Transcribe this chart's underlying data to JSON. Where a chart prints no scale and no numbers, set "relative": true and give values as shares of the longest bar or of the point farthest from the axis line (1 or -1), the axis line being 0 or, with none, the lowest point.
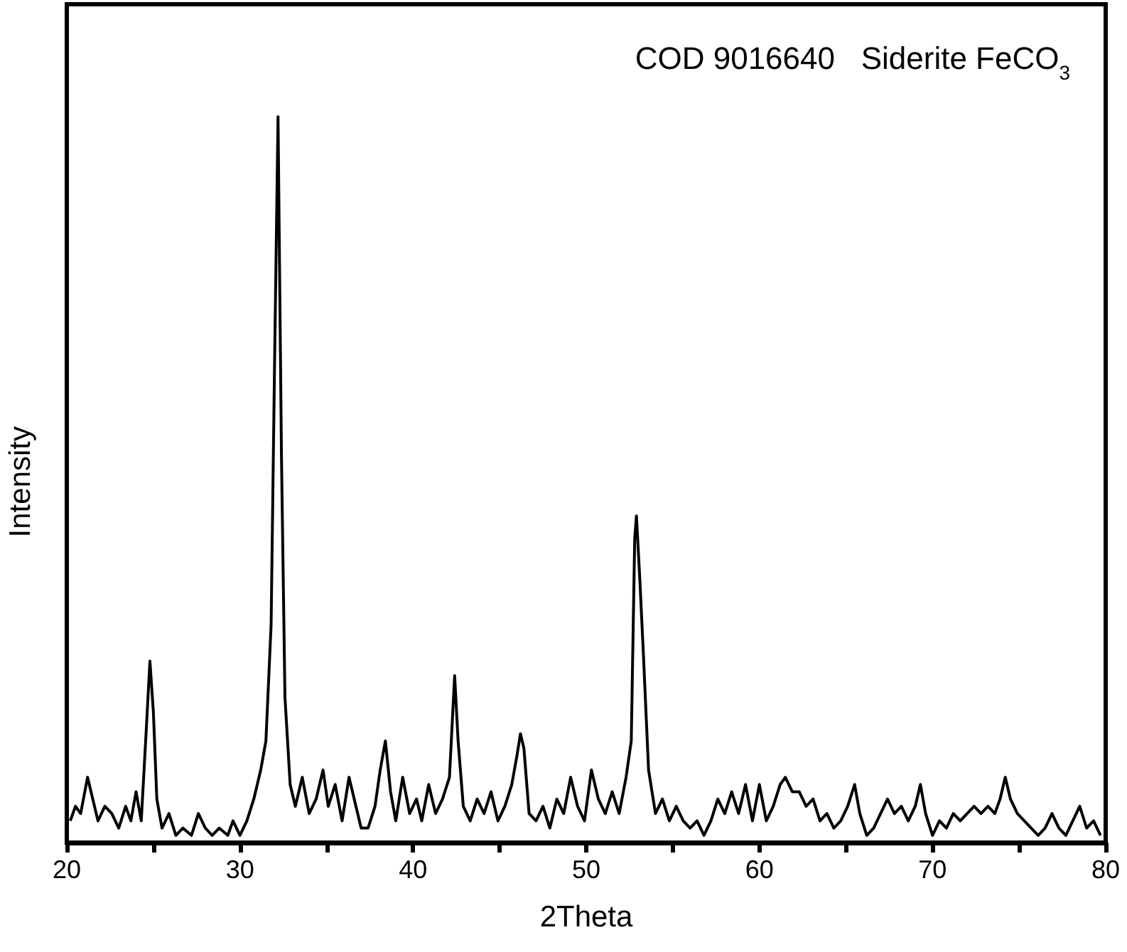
{
  "chart_data": {
    "type": "line",
    "xlabel": "2Theta",
    "ylabel": "Intensity",
    "relative": true,
    "annotations": [
      "COD 9016640   Siderite FeCO$_{3}$"
    ],
    "xlim": [
      20,
      80
    ],
    "xticks": [
      20,
      {
        "value": 25,
        "label": null
      },
      30,
      {
        "value": 35,
        "label": null
      },
      40,
      {
        "value": 45,
        "label": null
      },
      50,
      {
        "value": 55,
        "label": null
      },
      60,
      {
        "value": 65,
        "label": null
      },
      70,
      {
        "value": 75,
        "label": null
      },
      80
    ],
    "series": [
      {
        "color": "#000000",
        "x": [
          20.2,
          20.5,
          20.8,
          21.2,
          21.5,
          21.8,
          22.2,
          22.6,
          23.0,
          23.4,
          23.7,
          24.0,
          24.3,
          24.6,
          24.8,
          25.0,
          25.2,
          25.5,
          25.9,
          26.3,
          26.7,
          27.2,
          27.6,
          28.0,
          28.4,
          28.8,
          29.3,
          29.6,
          30.0,
          30.4,
          30.8,
          31.2,
          31.5,
          31.8,
          32.0,
          32.2,
          32.4,
          32.6,
          32.9,
          33.2,
          33.6,
          34.0,
          34.4,
          34.8,
          35.1,
          35.5,
          35.9,
          36.3,
          36.7,
          37.0,
          37.4,
          37.8,
          38.1,
          38.4,
          38.7,
          39.0,
          39.4,
          39.8,
          40.2,
          40.5,
          40.9,
          41.3,
          41.7,
          42.1,
          42.4,
          42.6,
          42.9,
          43.3,
          43.7,
          44.1,
          44.5,
          44.9,
          45.3,
          45.7,
          46.0,
          46.2,
          46.4,
          46.7,
          47.1,
          47.5,
          47.9,
          48.3,
          48.7,
          49.1,
          49.5,
          49.9,
          50.3,
          50.7,
          51.1,
          51.5,
          51.9,
          52.3,
          52.6,
          52.8,
          52.9,
          53.1,
          53.3,
          53.6,
          54.0,
          54.4,
          54.8,
          55.2,
          55.6,
          56.0,
          56.4,
          56.8,
          57.2,
          57.6,
          58.0,
          58.4,
          58.8,
          59.2,
          59.6,
          60.0,
          60.4,
          60.8,
          61.2,
          61.5,
          61.9,
          62.3,
          62.7,
          63.1,
          63.5,
          63.9,
          64.3,
          64.7,
          65.1,
          65.5,
          65.8,
          66.2,
          66.6,
          67.0,
          67.4,
          67.8,
          68.2,
          68.6,
          69.0,
          69.3,
          69.6,
          70.0,
          70.4,
          70.8,
          71.2,
          71.6,
          72.0,
          72.4,
          72.8,
          73.2,
          73.6,
          73.9,
          74.2,
          74.5,
          74.9,
          75.3,
          75.7,
          76.1,
          76.5,
          76.9,
          77.3,
          77.7,
          78.1,
          78.5,
          78.9,
          79.3,
          79.7
        ],
        "values": [
          0.03,
          0.05,
          0.04,
          0.09,
          0.06,
          0.03,
          0.05,
          0.04,
          0.02,
          0.05,
          0.03,
          0.07,
          0.03,
          0.16,
          0.25,
          0.18,
          0.06,
          0.02,
          0.04,
          0.01,
          0.02,
          0.01,
          0.04,
          0.02,
          0.01,
          0.02,
          0.01,
          0.03,
          0.01,
          0.03,
          0.06,
          0.1,
          0.14,
          0.3,
          0.66,
          1.0,
          0.53,
          0.2,
          0.08,
          0.05,
          0.09,
          0.04,
          0.06,
          0.1,
          0.05,
          0.08,
          0.03,
          0.09,
          0.05,
          0.02,
          0.02,
          0.05,
          0.1,
          0.14,
          0.07,
          0.03,
          0.09,
          0.04,
          0.06,
          0.03,
          0.08,
          0.04,
          0.06,
          0.09,
          0.23,
          0.14,
          0.05,
          0.03,
          0.06,
          0.04,
          0.07,
          0.03,
          0.05,
          0.08,
          0.12,
          0.15,
          0.13,
          0.04,
          0.03,
          0.05,
          0.02,
          0.06,
          0.04,
          0.09,
          0.05,
          0.03,
          0.1,
          0.06,
          0.04,
          0.07,
          0.04,
          0.09,
          0.14,
          0.42,
          0.45,
          0.36,
          0.26,
          0.1,
          0.04,
          0.06,
          0.03,
          0.05,
          0.03,
          0.02,
          0.03,
          0.01,
          0.03,
          0.06,
          0.04,
          0.07,
          0.04,
          0.08,
          0.03,
          0.08,
          0.03,
          0.05,
          0.08,
          0.09,
          0.07,
          0.07,
          0.05,
          0.06,
          0.03,
          0.04,
          0.02,
          0.03,
          0.05,
          0.08,
          0.04,
          0.01,
          0.02,
          0.04,
          0.06,
          0.04,
          0.05,
          0.03,
          0.05,
          0.08,
          0.04,
          0.01,
          0.03,
          0.02,
          0.04,
          0.03,
          0.04,
          0.05,
          0.04,
          0.05,
          0.04,
          0.06,
          0.09,
          0.06,
          0.04,
          0.03,
          0.02,
          0.01,
          0.02,
          0.04,
          0.02,
          0.01,
          0.03,
          0.05,
          0.02,
          0.03,
          0.01
        ]
      }
    ]
  }
}
